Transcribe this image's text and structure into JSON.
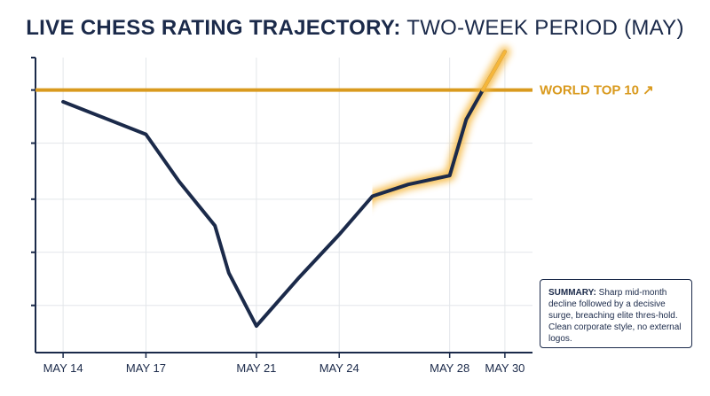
{
  "title": {
    "bold": "LIVE CHESS RATING TRAJECTORY:",
    "light": "TWO-WEEK PERIOD (MAY)"
  },
  "colors": {
    "line": "#1b2a4a",
    "threshold": "#d99a1e",
    "glow": "#f5b63a",
    "grid": "#e3e6ea",
    "axis": "#1b2a4a"
  },
  "chart_data": {
    "type": "line",
    "title": "LIVE CHESS RATING TRAJECTORY: TWO-WEEK PERIOD (MAY)",
    "xlabel": "",
    "ylabel": "",
    "x_range_days": [
      13,
      31
    ],
    "y_range": [
      0,
      100
    ],
    "grid": true,
    "x_ticks": [
      {
        "day": 14,
        "label": "MAY 14"
      },
      {
        "day": 17,
        "label": "MAY 17"
      },
      {
        "day": 21,
        "label": "MAY 21"
      },
      {
        "day": 24,
        "label": "MAY 24"
      },
      {
        "day": 28,
        "label": "MAY 28"
      },
      {
        "day": 30,
        "label": "MAY 30"
      }
    ],
    "y_ticks": [
      16,
      34,
      52,
      71,
      89
    ],
    "series": [
      {
        "points": [
          {
            "day": 14,
            "value": 85
          },
          {
            "day": 17,
            "value": 74
          },
          {
            "day": 18.2,
            "value": 58
          },
          {
            "day": 19.5,
            "value": 43
          },
          {
            "day": 20,
            "value": 27
          },
          {
            "day": 21,
            "value": 9
          },
          {
            "day": 22.5,
            "value": 25
          },
          {
            "day": 24,
            "value": 40
          },
          {
            "day": 25.2,
            "value": 53
          },
          {
            "day": 26.5,
            "value": 57
          },
          {
            "day": 28,
            "value": 60
          },
          {
            "day": 28.6,
            "value": 79
          },
          {
            "day": 29.2,
            "value": 89
          },
          {
            "day": 30,
            "value": 102
          }
        ]
      }
    ],
    "threshold": {
      "value": 89,
      "label": "WORLD TOP 10 ↗"
    }
  },
  "summary": {
    "label": "SUMMARY:",
    "text": "Sharp mid-month decline followed by a decisive surge, breaching elite thres-hold. Clean corporate style, no external logos."
  }
}
